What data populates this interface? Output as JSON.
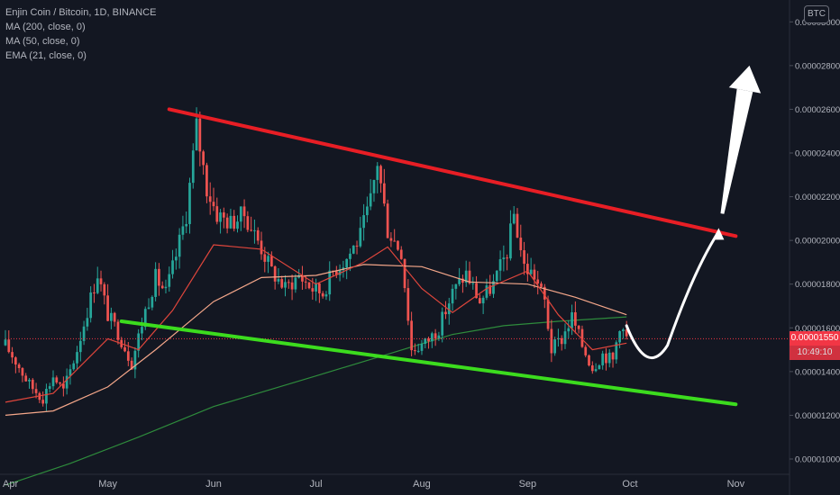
{
  "legend": {
    "symbol": "Enjin Coin / Bitcoin, 1D, BINANCE",
    "ma200": "MA (200, close, 0)",
    "ma50": "MA (50, close, 0)",
    "ema21": "EMA (21, close, 0)"
  },
  "currency_badge": "BTC",
  "current_price_label": "0.00001550",
  "countdown_label": "10:49:10",
  "colors": {
    "background": "#131722",
    "up_candle": "#26a69a",
    "down_candle": "#ef5350",
    "resistance": "#e81e25",
    "support": "#3cdc1e",
    "ma200": "#2e8b3c",
    "ma50": "#f5a78a",
    "ema21": "#e0463c",
    "arrow": "#ffffff"
  },
  "chart_data": {
    "type": "candlestick",
    "title": "Enjin Coin / Bitcoin, 1D, BINANCE",
    "x_axis": {
      "type": "date",
      "range": [
        "2021-04-01",
        "2021-11-12"
      ],
      "ticks": [
        {
          "date": "2021-04-01",
          "label": "Apr"
        },
        {
          "date": "2021-05-01",
          "label": "May"
        },
        {
          "date": "2021-06-01",
          "label": "Jun"
        },
        {
          "date": "2021-07-01",
          "label": "Jul"
        },
        {
          "date": "2021-08-01",
          "label": "Aug"
        },
        {
          "date": "2021-09-01",
          "label": "Sep"
        },
        {
          "date": "2021-10-01",
          "label": "Oct"
        },
        {
          "date": "2021-11-01",
          "label": "Nov"
        }
      ]
    },
    "y_axis": {
      "position": "right",
      "range": [
        9.3e-06,
        3.1e-05
      ],
      "ticks": [
        {
          "value": 1e-05,
          "label": "0.00001000"
        },
        {
          "value": 1.2e-05,
          "label": "0.00001200"
        },
        {
          "value": 1.4e-05,
          "label": "0.00001400"
        },
        {
          "value": 1.6e-05,
          "label": "0.00001600"
        },
        {
          "value": 1.8e-05,
          "label": "0.00001800"
        },
        {
          "value": 2e-05,
          "label": "0.00002000"
        },
        {
          "value": 2.2e-05,
          "label": "0.00002200"
        },
        {
          "value": 2.4e-05,
          "label": "0.00002400"
        },
        {
          "value": 2.6e-05,
          "label": "0.00002600"
        },
        {
          "value": 2.8e-05,
          "label": "0.00002800"
        },
        {
          "value": 3e-05,
          "label": "0.00003000"
        }
      ]
    },
    "grid": false,
    "last_close": 1.55e-05,
    "price_path": [
      [
        "2021-04-01",
        1.52e-05
      ],
      [
        "2021-04-04",
        1.45e-05
      ],
      [
        "2021-04-08",
        1.34e-05
      ],
      [
        "2021-04-12",
        1.28e-05
      ],
      [
        "2021-04-15",
        1.38e-05
      ],
      [
        "2021-04-18",
        1.31e-05
      ],
      [
        "2021-04-22",
        1.5e-05
      ],
      [
        "2021-04-25",
        1.68e-05
      ],
      [
        "2021-04-28",
        1.85e-05
      ],
      [
        "2021-05-01",
        1.66e-05
      ],
      [
        "2021-05-04",
        1.58e-05
      ],
      [
        "2021-05-08",
        1.44e-05
      ],
      [
        "2021-05-12",
        1.68e-05
      ],
      [
        "2021-05-15",
        1.83e-05
      ],
      [
        "2021-05-18",
        1.76e-05
      ],
      [
        "2021-05-21",
        1.93e-05
      ],
      [
        "2021-05-24",
        2.12e-05
      ],
      [
        "2021-05-27",
        2.52e-05
      ],
      [
        "2021-05-30",
        2.24e-05
      ],
      [
        "2021-06-02",
        2.12e-05
      ],
      [
        "2021-06-06",
        2.08e-05
      ],
      [
        "2021-06-10",
        2.12e-05
      ],
      [
        "2021-06-14",
        2e-05
      ],
      [
        "2021-06-18",
        1.86e-05
      ],
      [
        "2021-06-22",
        1.78e-05
      ],
      [
        "2021-06-26",
        1.84e-05
      ],
      [
        "2021-06-30",
        1.78e-05
      ],
      [
        "2021-07-03",
        1.76e-05
      ],
      [
        "2021-07-06",
        1.86e-05
      ],
      [
        "2021-07-10",
        1.92e-05
      ],
      [
        "2021-07-14",
        2.02e-05
      ],
      [
        "2021-07-17",
        2.18e-05
      ],
      [
        "2021-07-19",
        2.36e-05
      ],
      [
        "2021-07-22",
        2.05e-05
      ],
      [
        "2021-07-26",
        1.95e-05
      ],
      [
        "2021-07-29",
        1.5e-05
      ],
      [
        "2021-08-02",
        1.53e-05
      ],
      [
        "2021-08-06",
        1.6e-05
      ],
      [
        "2021-08-10",
        1.76e-05
      ],
      [
        "2021-08-14",
        1.85e-05
      ],
      [
        "2021-08-18",
        1.72e-05
      ],
      [
        "2021-08-22",
        1.8e-05
      ],
      [
        "2021-08-26",
        1.95e-05
      ],
      [
        "2021-08-28",
        2.12e-05
      ],
      [
        "2021-08-31",
        1.88e-05
      ],
      [
        "2021-09-03",
        1.84e-05
      ],
      [
        "2021-09-06",
        1.72e-05
      ],
      [
        "2021-09-08",
        1.5e-05
      ],
      [
        "2021-09-11",
        1.55e-05
      ],
      [
        "2021-09-14",
        1.65e-05
      ],
      [
        "2021-09-17",
        1.52e-05
      ],
      [
        "2021-09-20",
        1.42e-05
      ],
      [
        "2021-09-23",
        1.48e-05
      ],
      [
        "2021-09-26",
        1.45e-05
      ],
      [
        "2021-09-28",
        1.62e-05
      ],
      [
        "2021-09-30",
        1.55e-05
      ]
    ],
    "series": [
      {
        "name": "MA (200, close, 0)",
        "color": "#2e8b3c",
        "values": [
          [
            "2021-04-01",
            8.8e-06
          ],
          [
            "2021-04-20",
            9.8e-06
          ],
          [
            "2021-05-10",
            1.1e-05
          ],
          [
            "2021-06-01",
            1.24e-05
          ],
          [
            "2021-07-01",
            1.38e-05
          ],
          [
            "2021-07-20",
            1.47e-05
          ],
          [
            "2021-08-10",
            1.57e-05
          ],
          [
            "2021-08-25",
            1.61e-05
          ],
          [
            "2021-09-10",
            1.63e-05
          ],
          [
            "2021-09-30",
            1.65e-05
          ]
        ]
      },
      {
        "name": "MA (50, close, 0)",
        "color": "#f5a78a",
        "values": [
          [
            "2021-04-01",
            1.2e-05
          ],
          [
            "2021-04-15",
            1.22e-05
          ],
          [
            "2021-05-01",
            1.33e-05
          ],
          [
            "2021-05-15",
            1.5e-05
          ],
          [
            "2021-06-01",
            1.72e-05
          ],
          [
            "2021-06-15",
            1.83e-05
          ],
          [
            "2021-07-01",
            1.84e-05
          ],
          [
            "2021-07-15",
            1.89e-05
          ],
          [
            "2021-08-01",
            1.88e-05
          ],
          [
            "2021-08-15",
            1.81e-05
          ],
          [
            "2021-09-01",
            1.8e-05
          ],
          [
            "2021-09-15",
            1.74e-05
          ],
          [
            "2021-09-30",
            1.66e-05
          ]
        ]
      },
      {
        "name": "EMA (21, close, 0)",
        "color": "#e0463c",
        "values": [
          [
            "2021-04-01",
            1.26e-05
          ],
          [
            "2021-04-15",
            1.3e-05
          ],
          [
            "2021-05-01",
            1.55e-05
          ],
          [
            "2021-05-10",
            1.5e-05
          ],
          [
            "2021-05-20",
            1.68e-05
          ],
          [
            "2021-06-01",
            1.98e-05
          ],
          [
            "2021-06-15",
            1.96e-05
          ],
          [
            "2021-07-01",
            1.8e-05
          ],
          [
            "2021-07-15",
            1.9e-05
          ],
          [
            "2021-07-22",
            1.97e-05
          ],
          [
            "2021-08-01",
            1.78e-05
          ],
          [
            "2021-08-10",
            1.67e-05
          ],
          [
            "2021-08-20",
            1.78e-05
          ],
          [
            "2021-09-01",
            1.86e-05
          ],
          [
            "2021-09-10",
            1.66e-05
          ],
          [
            "2021-09-20",
            1.5e-05
          ],
          [
            "2021-09-30",
            1.53e-05
          ]
        ]
      }
    ],
    "annotations": [
      {
        "kind": "trendline",
        "name": "resistance",
        "color": "#e81e25",
        "from": [
          "2021-05-19",
          2.6e-05
        ],
        "to": [
          "2021-11-01",
          2.02e-05
        ]
      },
      {
        "kind": "trendline",
        "name": "support",
        "color": "#3cdc1e",
        "from": [
          "2021-05-05",
          1.63e-05
        ],
        "to": [
          "2021-11-01",
          1.25e-05
        ]
      },
      {
        "kind": "projection-arrow",
        "name": "bullish-projection",
        "color": "#ffffff",
        "path": [
          [
            "2021-09-30",
            1.61e-05
          ],
          [
            "2021-10-06",
            1.47e-05
          ],
          [
            "2021-10-12",
            1.52e-05
          ],
          [
            "2021-10-22",
            1.87e-05
          ],
          [
            "2021-10-27",
            2.04e-05
          ],
          [
            "2021-11-02",
            2.5e-05
          ],
          [
            "2021-11-05",
            2.8e-05
          ]
        ]
      }
    ]
  }
}
